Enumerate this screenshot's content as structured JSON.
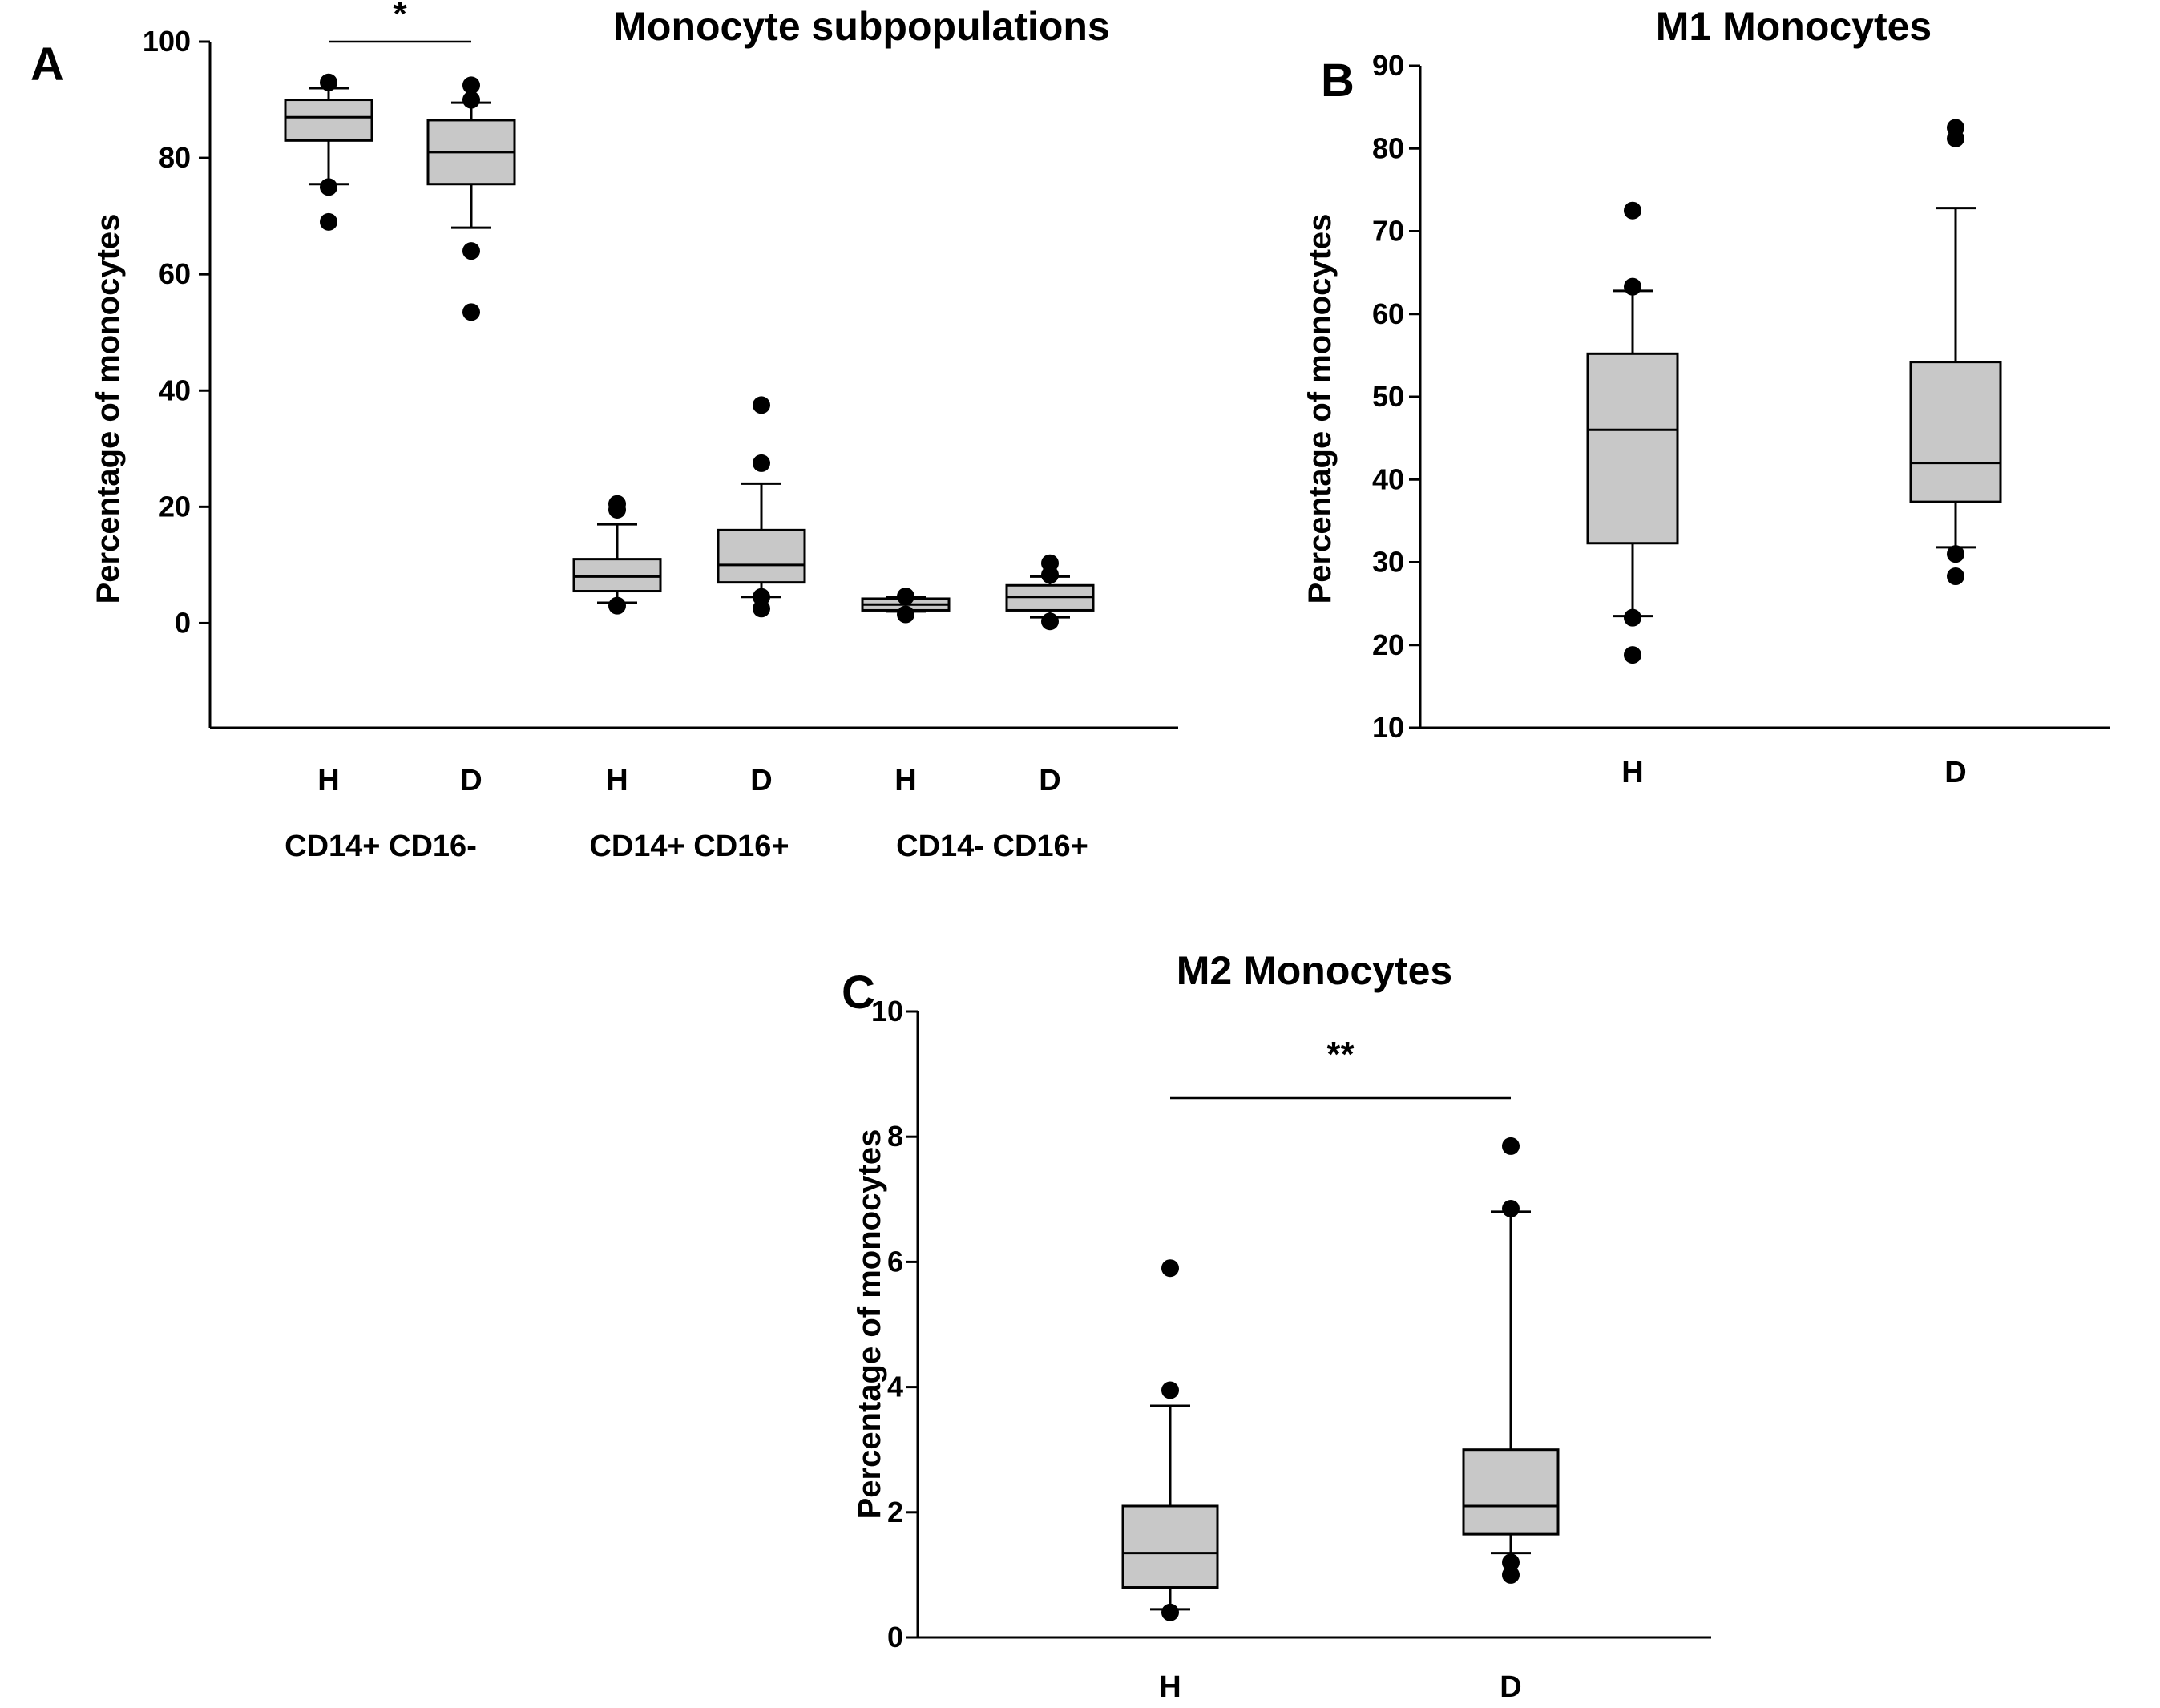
{
  "chart_data": [
    {
      "panel": "A",
      "type": "box",
      "title": "Monocyte subpopulations",
      "ylabel": "Percentage of monocytes",
      "ylim": [
        -18,
        100
      ],
      "yticks": [
        0,
        20,
        40,
        60,
        80,
        100
      ],
      "categories": [
        "H",
        "D",
        "H",
        "D",
        "H",
        "D"
      ],
      "groups": [
        {
          "label": "CD14+ CD16-",
          "members": [
            0,
            1
          ]
        },
        {
          "label": "CD14+ CD16+",
          "members": [
            2,
            3
          ]
        },
        {
          "label": "CD14- CD16+",
          "members": [
            4,
            5
          ]
        }
      ],
      "boxes": [
        {
          "q1": 83,
          "median": 87,
          "q3": 90,
          "whisker_low": 75.5,
          "whisker_high": 92,
          "outliers": [
            93,
            75,
            69
          ]
        },
        {
          "q1": 75.5,
          "median": 81,
          "q3": 86.5,
          "whisker_low": 68,
          "whisker_high": 89.5,
          "outliers": [
            92.5,
            90,
            64,
            53.5
          ]
        },
        {
          "q1": 5.5,
          "median": 8,
          "q3": 11,
          "whisker_low": 3.5,
          "whisker_high": 17,
          "outliers": [
            20.5,
            19.5,
            3
          ]
        },
        {
          "q1": 7,
          "median": 10,
          "q3": 16,
          "whisker_low": 4.5,
          "whisker_high": 24,
          "outliers": [
            37.5,
            27.5,
            4.5,
            2.5
          ]
        },
        {
          "q1": 2.2,
          "median": 3.2,
          "q3": 4.2,
          "whisker_low": 2,
          "whisker_high": 4.4,
          "outliers": [
            4.6,
            1.5
          ]
        },
        {
          "q1": 2.2,
          "median": 4.5,
          "q3": 6.5,
          "whisker_low": 1,
          "whisker_high": 8,
          "outliers": [
            10.3,
            8.3,
            0.3
          ]
        }
      ],
      "significance": [
        {
          "label": "*",
          "from": 0,
          "to": 1,
          "y": 100
        }
      ]
    },
    {
      "panel": "B",
      "type": "box",
      "title": "M1 Monocytes",
      "ylabel": "Percentage of monocytes",
      "ylim": [
        10,
        90
      ],
      "yticks": [
        10,
        20,
        30,
        40,
        50,
        60,
        70,
        80,
        90
      ],
      "categories": [
        "H",
        "D"
      ],
      "boxes": [
        {
          "q1": 32.3,
          "median": 46,
          "q3": 55.2,
          "whisker_low": 23.5,
          "whisker_high": 62.8,
          "outliers": [
            72.5,
            63.3,
            23.3,
            18.8
          ]
        },
        {
          "q1": 37.3,
          "median": 42,
          "q3": 54.2,
          "whisker_low": 31.8,
          "whisker_high": 72.8,
          "outliers": [
            82.5,
            81.2,
            31.0,
            28.3
          ]
        }
      ]
    },
    {
      "panel": "C",
      "type": "box",
      "title": "M2 Monocytes",
      "ylabel": "Percentage of monocytes",
      "ylim": [
        0,
        10
      ],
      "yticks": [
        0,
        2,
        4,
        6,
        8,
        10
      ],
      "categories": [
        "H",
        "D"
      ],
      "boxes": [
        {
          "q1": 0.8,
          "median": 1.35,
          "q3": 2.1,
          "whisker_low": 0.45,
          "whisker_high": 3.7,
          "outliers": [
            5.9,
            3.95,
            0.4
          ]
        },
        {
          "q1": 1.65,
          "median": 2.1,
          "q3": 3.0,
          "whisker_low": 1.35,
          "whisker_high": 6.8,
          "outliers": [
            7.85,
            6.85,
            1.2,
            1.0
          ]
        }
      ],
      "significance": [
        {
          "label": "**",
          "from": 0,
          "to": 1,
          "y": 8.6
        }
      ]
    }
  ],
  "colors": {
    "box_fill": "#c8c8c8",
    "line": "#000000",
    "background": "#ffffff"
  }
}
